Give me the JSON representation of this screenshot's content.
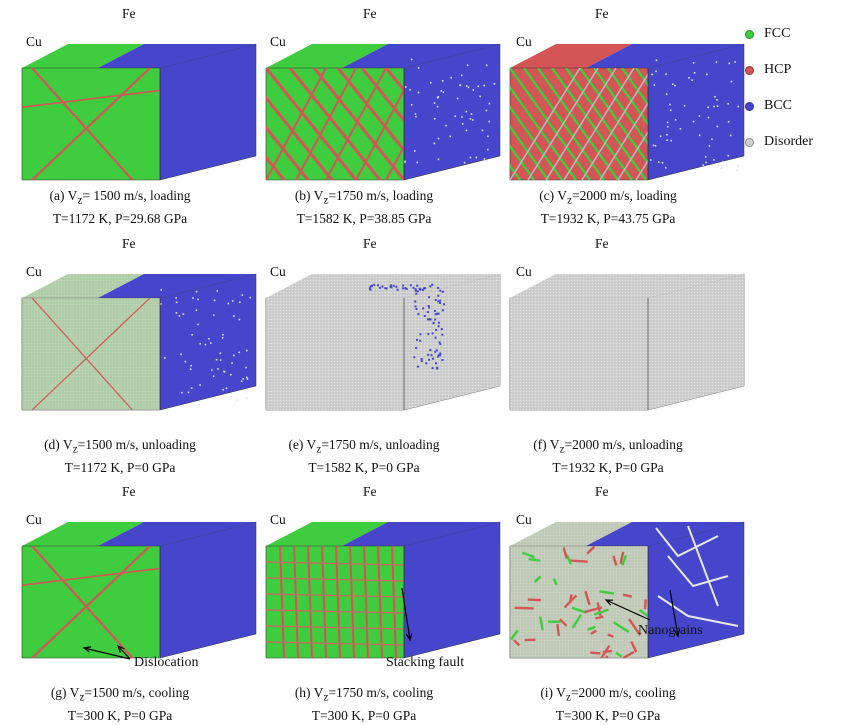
{
  "legend": [
    {
      "label": "FCC",
      "color": "#3fcc3f"
    },
    {
      "label": "HCP",
      "color": "#d45555"
    },
    {
      "label": "BCC",
      "color": "#4646cc"
    },
    {
      "label": "Disorder",
      "color": "#d2d2d2"
    }
  ],
  "materials": {
    "left": "Cu",
    "right": "Fe"
  },
  "panels": [
    {
      "caption1": "(a) V",
      "sub": "z",
      "caption1_rest": "= 1500 m/s, loading",
      "caption2": "T=1172  K, P=29.68  GPa",
      "cu": "fcc_hcp_sparse",
      "fe": "bcc"
    },
    {
      "caption1": "(b) V",
      "sub": "z",
      "caption1_rest": "=1750 m/s, loading",
      "caption2": "T=1582  K, P=38.85  GPa",
      "cu": "fcc_hcp_bands",
      "fe": "bcc_speckled"
    },
    {
      "caption1": "(c) V",
      "sub": "z",
      "caption1_rest": "=2000 m/s, loading",
      "caption2": "T=1932  K, P=43.75  GPa",
      "cu": "hcp_dense",
      "fe": "bcc_speckled"
    },
    {
      "caption1": "(d) V",
      "sub": "z",
      "caption1_rest": "=1500 m/s, unloading",
      "caption2": "T=1172  K, P=0 GPa",
      "cu": "fcc_disorder",
      "fe": "bcc_speckled"
    },
    {
      "caption1": "(e) V",
      "sub": "z",
      "caption1_rest": "=1750 m/s, unloading",
      "caption2": "T=1582  K, P=0 GPa",
      "cu": "disorder",
      "fe": "disorder_bcc_patch"
    },
    {
      "caption1": "(f) V",
      "sub": "z",
      "caption1_rest": "=2000 m/s, unloading",
      "caption2": "T=1932  K, P=0 GPa",
      "cu": "disorder",
      "fe": "disorder"
    },
    {
      "caption1": "(g) V",
      "sub": "z",
      "caption1_rest": "=1500 m/s, cooling",
      "caption2": "T=300  K, P=0 GPa",
      "cu": "fcc_hcp_sparse",
      "fe": "bcc",
      "annotation": "Dislocation"
    },
    {
      "caption1": "(h) V",
      "sub": "z",
      "caption1_rest": "=1750 m/s, cooling",
      "caption2": "T=300  K, P=0 GPa",
      "cu": "fcc_hcp_grid",
      "fe": "bcc",
      "annotation": "Stacking fault"
    },
    {
      "caption1": "(i) V",
      "sub": "z",
      "caption1_rest": "=2000 m/s, cooling",
      "caption2": "T=300  K, P=0 GPa",
      "cu": "nanograins",
      "fe": "bcc_boundaries",
      "annotation": "Nanograins"
    }
  ]
}
